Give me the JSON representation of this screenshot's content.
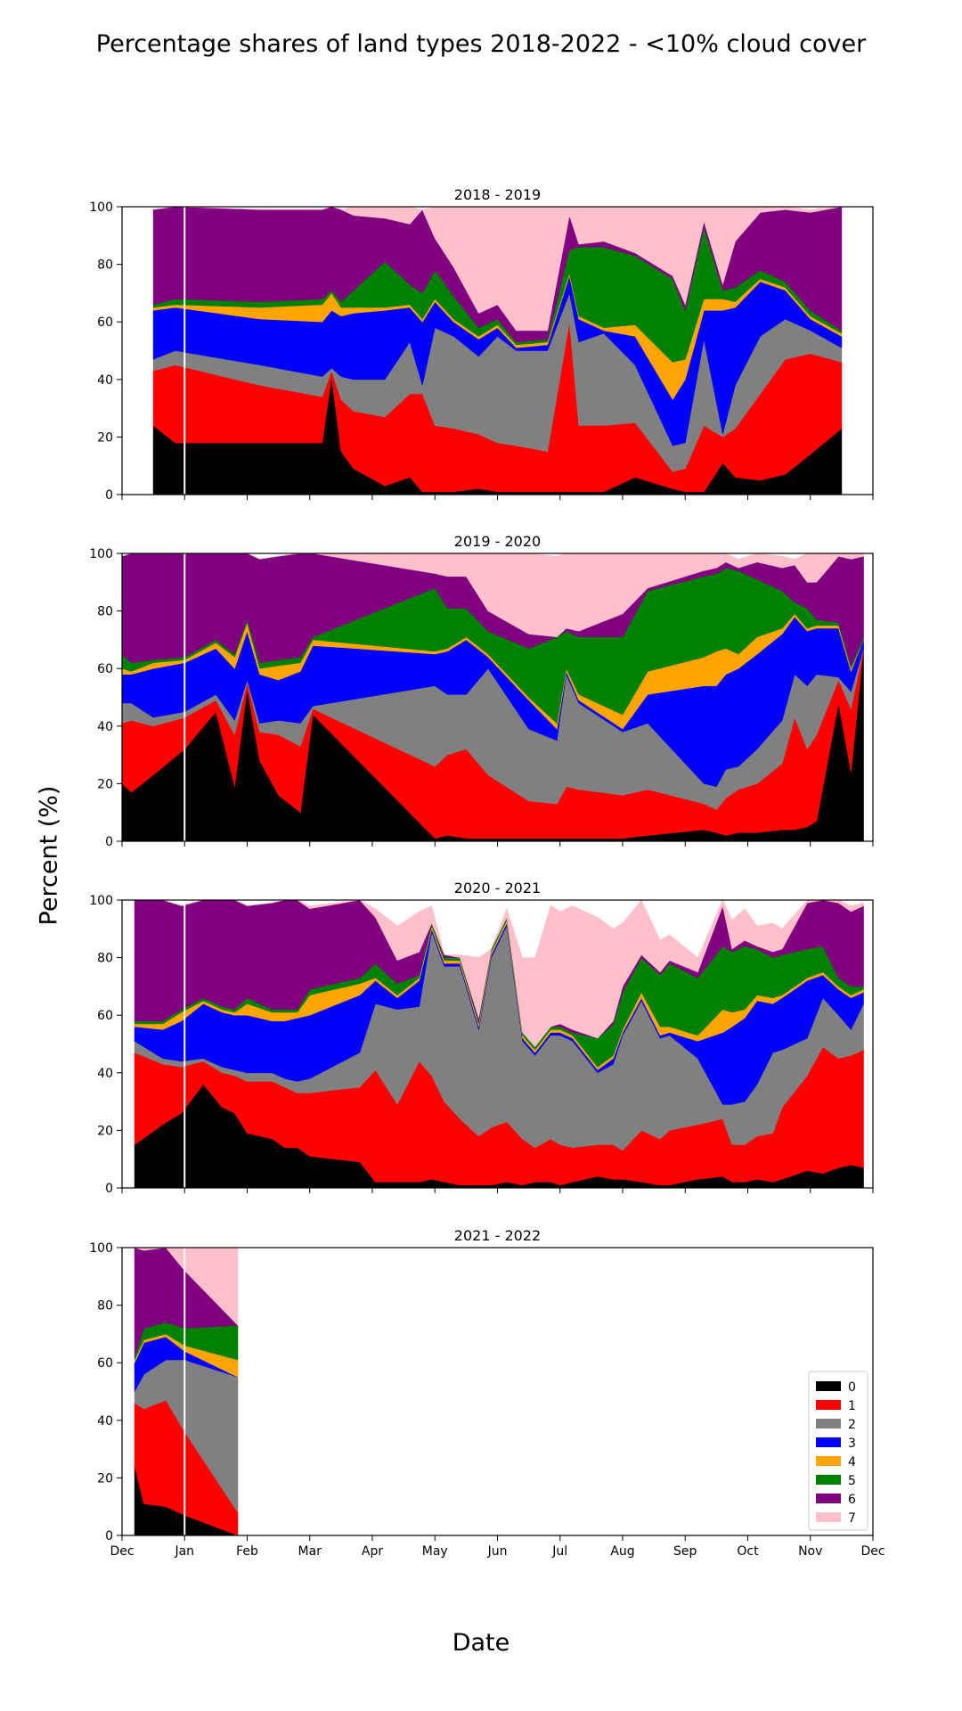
{
  "figure": {
    "title": "Percentage shares of land types 2018-2022 - <10% cloud cover",
    "ylabel": "Percent (%)",
    "xlabel": "Date"
  },
  "chart_data": {
    "type": "area",
    "stacked": true,
    "xlim": [
      "Dec",
      "Dec"
    ],
    "ylim": [
      0,
      100
    ],
    "yticks": [
      0,
      20,
      40,
      60,
      80,
      100
    ],
    "xtick_labels": [
      "Dec",
      "Jan",
      "Feb",
      "Mar",
      "Apr",
      "May",
      "Jun",
      "Jul",
      "Aug",
      "Sep",
      "Oct",
      "Nov",
      "Dec"
    ],
    "x_unit": "months since 1 Dec",
    "vertical_line_at": 1.0,
    "classes": [
      "0",
      "1",
      "2",
      "3",
      "4",
      "5",
      "6",
      "7"
    ],
    "colors": [
      "#000000",
      "#ff0000",
      "#808080",
      "#0000ff",
      "#ffa500",
      "#008000",
      "#800080",
      "#ffc0cb"
    ],
    "legend_location": "lower right",
    "panels": [
      {
        "title": "2018 - 2019",
        "x": [
          0.5,
          0.85,
          2.2,
          3.2,
          3.35,
          3.5,
          3.7,
          4.2,
          4.6,
          4.8,
          5.0,
          5.3,
          5.7,
          6.0,
          6.3,
          6.8,
          7.15,
          7.3,
          7.7,
          8.2,
          8.8,
          9.0,
          9.3,
          9.6,
          9.8,
          10.2,
          10.6,
          11.0,
          11.5
        ],
        "stacks": [
          [
            24,
            18,
            18,
            18,
            41,
            15,
            9,
            3,
            6,
            1,
            1,
            1,
            2,
            1,
            1,
            1,
            1,
            1,
            1,
            6,
            2,
            1,
            1,
            11,
            6,
            5,
            7,
            14,
            23
          ],
          [
            19,
            27,
            20,
            16,
            2,
            18,
            20,
            24,
            29,
            34,
            23,
            22,
            19,
            17,
            16,
            14,
            59,
            23,
            23,
            19,
            6,
            8,
            23,
            9,
            17,
            30,
            40,
            35,
            23
          ],
          [
            4,
            5,
            7,
            7,
            1,
            8,
            11,
            13,
            18,
            3,
            34,
            32,
            27,
            37,
            33,
            35,
            10,
            29,
            32,
            20,
            9,
            9,
            30,
            1,
            15,
            20,
            14,
            8,
            5
          ],
          [
            17,
            15,
            16,
            19,
            20,
            21,
            23,
            24,
            12,
            22,
            9,
            5,
            6,
            3,
            1,
            2,
            6,
            8,
            1,
            10,
            16,
            22,
            10,
            43,
            27,
            19,
            10,
            4,
            4
          ],
          [
            1,
            1,
            4,
            6,
            6,
            3,
            2,
            1,
            1,
            1,
            1,
            1,
            1,
            1,
            1,
            1,
            1,
            1,
            1,
            4,
            13,
            7,
            4,
            4,
            2,
            1,
            1,
            1,
            1
          ],
          [
            1,
            2,
            2,
            2,
            1,
            2,
            6,
            16,
            7,
            9,
            10,
            8,
            3,
            2,
            1,
            1,
            8,
            24,
            28,
            24,
            29,
            17,
            25,
            3,
            5,
            3,
            2,
            2,
            1
          ],
          [
            33,
            32,
            32,
            31,
            29,
            32,
            26,
            15,
            21,
            29,
            11,
            10,
            5,
            5,
            4,
            3,
            12,
            1,
            2,
            1,
            1,
            2,
            2,
            2,
            16,
            20,
            25,
            34,
            43
          ],
          [
            0,
            0,
            0,
            0,
            0,
            0,
            3,
            4,
            6,
            0,
            11,
            21,
            37,
            34,
            43,
            43,
            3,
            13,
            12,
            16,
            24,
            34,
            5,
            27,
            12,
            2,
            1,
            1,
            0
          ]
        ]
      },
      {
        "title": "2019 - 2020",
        "x": [
          0.0,
          0.15,
          0.5,
          1.0,
          1.5,
          1.8,
          2.0,
          2.2,
          2.5,
          2.85,
          3.05,
          5.0,
          5.2,
          5.5,
          5.85,
          6.5,
          6.95,
          7.1,
          7.3,
          8.0,
          8.4,
          9.3,
          9.5,
          9.65,
          9.85,
          10.15,
          10.55,
          10.75,
          10.95,
          11.1,
          11.45,
          11.65,
          11.85
        ],
        "stacks": [
          [
            20,
            17,
            23,
            32,
            45,
            19,
            53,
            28,
            16,
            10,
            44,
            1,
            2,
            1,
            1,
            1,
            1,
            1,
            1,
            1,
            2,
            4,
            3,
            2,
            3,
            3,
            4,
            4,
            5,
            7,
            48,
            24,
            67
          ],
          [
            21,
            25,
            17,
            11,
            4,
            18,
            2,
            10,
            21,
            23,
            2,
            25,
            28,
            31,
            22,
            13,
            12,
            18,
            17,
            15,
            16,
            9,
            8,
            13,
            15,
            17,
            23,
            39,
            27,
            30,
            8,
            22,
            0
          ],
          [
            7,
            6,
            3,
            2,
            2,
            5,
            1,
            3,
            5,
            8,
            1,
            28,
            21,
            19,
            37,
            25,
            22,
            39,
            30,
            22,
            23,
            7,
            8,
            10,
            8,
            12,
            15,
            15,
            22,
            21,
            1,
            6,
            0
          ],
          [
            10,
            10,
            17,
            17,
            16,
            18,
            17,
            17,
            14,
            18,
            21,
            11,
            15,
            19,
            4,
            10,
            4,
            1,
            1,
            1,
            10,
            34,
            35,
            33,
            34,
            33,
            30,
            20,
            19,
            16,
            17,
            7,
            3
          ],
          [
            2,
            1,
            2,
            1,
            2,
            4,
            3,
            2,
            5,
            3,
            2,
            1,
            1,
            1,
            1,
            1,
            2,
            1,
            2,
            5,
            8,
            10,
            12,
            9,
            5,
            6,
            2,
            1,
            1,
            1,
            1,
            1,
            0
          ],
          [
            5,
            3,
            1,
            1,
            1,
            1,
            1,
            2,
            2,
            2,
            1,
            22,
            14,
            10,
            8,
            17,
            30,
            13,
            20,
            27,
            28,
            28,
            27,
            28,
            29,
            20,
            13,
            4,
            7,
            2,
            1,
            1,
            1
          ],
          [
            34,
            38,
            37,
            36,
            30,
            35,
            23,
            36,
            36,
            36,
            29,
            5,
            11,
            11,
            7,
            5,
            0,
            1,
            2,
            8,
            1,
            2,
            2,
            2,
            1,
            6,
            8,
            13,
            9,
            13,
            23,
            37,
            28
          ],
          [
            0,
            0,
            0,
            0,
            0,
            0,
            0,
            0,
            0,
            0,
            0,
            8,
            8,
            8,
            21,
            29,
            28,
            27,
            28,
            21,
            14,
            6,
            6,
            3,
            3,
            3,
            4,
            2,
            10,
            10,
            1,
            2,
            1
          ]
        ]
      },
      {
        "title": "2020 - 2021",
        "x": [
          0.2,
          0.65,
          0.95,
          1.3,
          1.6,
          1.8,
          2.0,
          2.4,
          2.6,
          2.8,
          3.0,
          3.8,
          4.05,
          4.4,
          4.75,
          4.95,
          5.15,
          5.4,
          5.7,
          5.9,
          6.15,
          6.4,
          6.6,
          6.85,
          7.0,
          7.2,
          7.6,
          7.85,
          8.0,
          8.3,
          8.6,
          8.75,
          9.2,
          9.6,
          9.75,
          9.95,
          10.15,
          10.4,
          10.55,
          10.95,
          11.2,
          11.45,
          11.65,
          11.85
        ],
        "stacks": [
          [
            15,
            22,
            26,
            36,
            28,
            26,
            19,
            17,
            14,
            14,
            11,
            9,
            2,
            2,
            2,
            3,
            2,
            1,
            1,
            1,
            2,
            1,
            2,
            2,
            1,
            2,
            4,
            3,
            3,
            2,
            1,
            1,
            3,
            4,
            2,
            2,
            3,
            2,
            3,
            6,
            5,
            7,
            8,
            7
          ],
          [
            32,
            21,
            16,
            8,
            12,
            13,
            18,
            20,
            21,
            19,
            22,
            26,
            39,
            27,
            42,
            36,
            28,
            23,
            17,
            20,
            21,
            16,
            12,
            15,
            14,
            12,
            11,
            12,
            10,
            18,
            16,
            19,
            19,
            20,
            13,
            13,
            15,
            17,
            25,
            33,
            44,
            38,
            38,
            41
          ],
          [
            4,
            2,
            2,
            1,
            2,
            2,
            3,
            3,
            3,
            4,
            5,
            12,
            23,
            33,
            19,
            50,
            47,
            53,
            37,
            59,
            68,
            34,
            32,
            36,
            38,
            37,
            25,
            28,
            40,
            45,
            35,
            33,
            23,
            5,
            14,
            15,
            18,
            28,
            20,
            13,
            17,
            15,
            9,
            16
          ],
          [
            5,
            10,
            14,
            19,
            19,
            19,
            20,
            18,
            20,
            22,
            22,
            20,
            8,
            4,
            9,
            1,
            1,
            1,
            1,
            1,
            1,
            1,
            1,
            1,
            1,
            1,
            1,
            2,
            1,
            1,
            1,
            1,
            6,
            25,
            27,
            29,
            29,
            17,
            18,
            20,
            8,
            9,
            11,
            4
          ],
          [
            1,
            2,
            3,
            1,
            1,
            1,
            4,
            3,
            3,
            2,
            7,
            4,
            1,
            1,
            1,
            1,
            1,
            1,
            1,
            1,
            1,
            1,
            1,
            1,
            1,
            1,
            1,
            1,
            1,
            2,
            3,
            2,
            2,
            8,
            5,
            3,
            2,
            2,
            1,
            1,
            1,
            1,
            1,
            1
          ],
          [
            1,
            1,
            1,
            1,
            1,
            1,
            2,
            1,
            1,
            1,
            2,
            2,
            5,
            4,
            1,
            1,
            1,
            1,
            1,
            1,
            1,
            1,
            1,
            1,
            1,
            1,
            10,
            11,
            13,
            12,
            18,
            22,
            20,
            22,
            21,
            22,
            16,
            14,
            14,
            10,
            9,
            3,
            3,
            1
          ],
          [
            42,
            42,
            36,
            34,
            37,
            38,
            32,
            37,
            38,
            38,
            28,
            27,
            16,
            8,
            8,
            0,
            1,
            0,
            1,
            0,
            0,
            0,
            0,
            0,
            1,
            1,
            0,
            1,
            2,
            1,
            1,
            1,
            2,
            14,
            1,
            2,
            1,
            2,
            2,
            16,
            17,
            26,
            26,
            28
          ],
          [
            0,
            0,
            0,
            0,
            0,
            0,
            0,
            0,
            0,
            0,
            1,
            0,
            3,
            12,
            14,
            6,
            0,
            1,
            21,
            0,
            3,
            26,
            31,
            42,
            39,
            43,
            42,
            32,
            22,
            19,
            11,
            9,
            5,
            2,
            10,
            11,
            7,
            10,
            7,
            1,
            1,
            1,
            2,
            1
          ]
        ]
      },
      {
        "title": "2021 - 2022",
        "x": [
          0.2,
          0.35,
          0.7,
          1.0,
          1.85
        ],
        "stacks": [
          [
            24,
            11,
            10,
            7,
            0
          ],
          [
            22,
            33,
            37,
            29,
            8
          ],
          [
            4,
            12,
            14,
            25,
            47
          ],
          [
            10,
            11,
            8,
            3,
            0
          ],
          [
            1,
            1,
            1,
            2,
            6
          ],
          [
            1,
            4,
            4,
            6,
            12
          ],
          [
            38,
            27,
            26,
            20,
            0
          ],
          [
            0,
            1,
            0,
            8,
            27
          ]
        ]
      }
    ]
  }
}
